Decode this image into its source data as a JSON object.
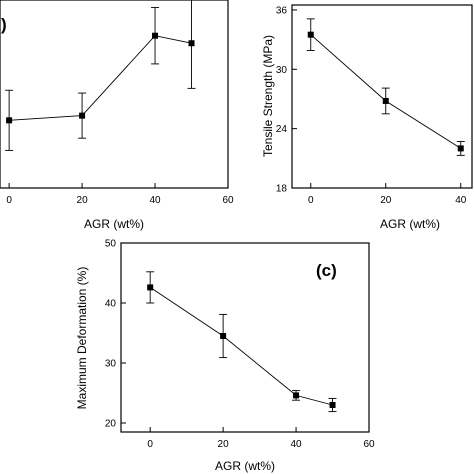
{
  "chart_data": [
    {
      "id": "a",
      "type": "line",
      "panel_label": ")",
      "xlabel": "AGR (wt%)",
      "ylabel": "",
      "x_ticks": [
        0,
        20,
        40,
        60
      ],
      "y_ticks": [],
      "xlim": [
        -2.5,
        60
      ],
      "ylim": [
        0,
        100
      ],
      "x": [
        0,
        20,
        40,
        50
      ],
      "values": [
        36,
        38.5,
        81,
        77
      ],
      "err": [
        16,
        12,
        15,
        24
      ]
    },
    {
      "id": "b",
      "type": "line",
      "panel_label": "",
      "xlabel": "AGR (wt%)",
      "ylabel": "Tensile Strength (MPa)",
      "x_ticks": [
        0,
        20,
        40
      ],
      "y_ticks": [
        18,
        24,
        30,
        36
      ],
      "xlim": [
        -5,
        43
      ],
      "ylim": [
        18,
        36.5
      ],
      "x": [
        0,
        20,
        40
      ],
      "values": [
        33.5,
        26.8,
        22.0
      ],
      "err": [
        1.6,
        1.3,
        0.7
      ]
    },
    {
      "id": "c",
      "type": "line",
      "panel_label": "(c)",
      "xlabel": "AGR (wt%)",
      "ylabel": "Maximum Deformation (%)",
      "x_ticks": [
        0,
        20,
        40,
        60
      ],
      "y_ticks": [
        20,
        30,
        40,
        50
      ],
      "xlim": [
        -8,
        60
      ],
      "ylim": [
        18.5,
        50
      ],
      "x": [
        0,
        20,
        40,
        50
      ],
      "values": [
        42.6,
        34.5,
        24.6,
        23.0
      ],
      "err": [
        2.6,
        3.6,
        0.8,
        1.1
      ]
    }
  ]
}
